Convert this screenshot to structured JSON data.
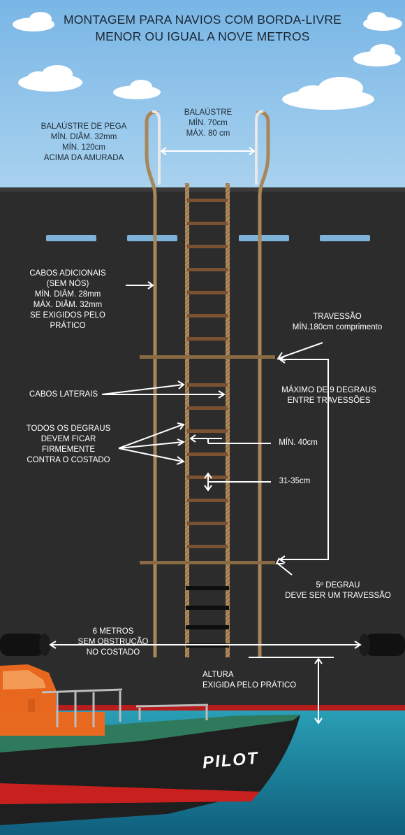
{
  "title": {
    "line1": "MONTAGEM PARA NAVIOS COM BORDA-LIVRE",
    "line2": "MENOR OU IGUAL A NOVE METROS"
  },
  "labels": {
    "handhold_stanchion": [
      "BALAÚSTRE DE PEGA",
      "MÍN. DIÂM. 32mm",
      "MÍN. 120cm",
      "ACIMA DA AMURADA"
    ],
    "stanchion_spacing": [
      "BALAÚSTRE",
      "MÍN. 70cm",
      "MÁX. 80 cm"
    ],
    "additional_ropes": [
      "CABOS ADICIONAIS",
      "(SEM NÓS)",
      "MÍN. DIÂM. 28mm",
      "MÁX. DIÂM. 32mm",
      "SE EXIGIDOS PELO",
      "PRÁTICO"
    ],
    "spreader": [
      "TRAVESSÃO",
      "MÍN.180cm comprimento"
    ],
    "max_steps": [
      "MÁXIMO DE 9 DEGRAUS",
      "ENTRE TRAVESSÕES"
    ],
    "side_ropes": [
      "CABOS LATERAIS"
    ],
    "steps_firm": [
      "TODOS OS DEGRAUS",
      "DEVEM FICAR",
      "FIRMEMENTE",
      "CONTRA O COSTADO"
    ],
    "min_width": [
      "MÍN. 40cm"
    ],
    "step_spacing": [
      "31-35cm"
    ],
    "fifth_step": [
      "5º DEGRAU",
      "DEVE SER UM TRAVESSÃO"
    ],
    "unobstructed": [
      "6 METROS",
      "SEM OBSTRUÇÃO",
      "NO COSTADO"
    ],
    "height": [
      "ALTURA",
      "EXIGIDA PELO PRÁTICO"
    ]
  },
  "boat_name": "PILOT",
  "colors": {
    "sky": "#8fc2e8",
    "hull": "#2b2b2b",
    "rope": "#b08a5b",
    "step": "#7a5232",
    "rubber_step": "#0e0e0e",
    "window": "#7db3d8",
    "boat_orange": "#e8671e",
    "boat_red": "#c8201f",
    "boat_green": "#2f7a5c",
    "sea": "#1e7f9c",
    "arrow": "#ffffff"
  },
  "icons": [
    "cloud-icon"
  ]
}
